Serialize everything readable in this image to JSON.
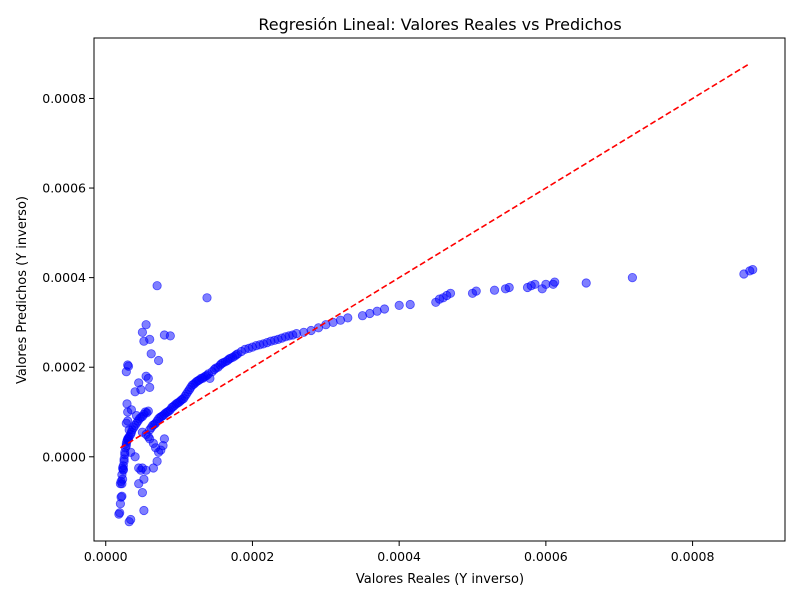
{
  "chart_data": {
    "type": "scatter",
    "title": "Regresión Lineal: Valores Reales vs Predichos",
    "xlabel": "Valores Reales (Y inverso)",
    "ylabel": "Valores Predichos (Y inverso)",
    "xlim": [
      -1.6e-05,
      0.000926
    ],
    "ylim": [
      -0.000188,
      0.000935
    ],
    "xticks": [
      0.0,
      0.0002,
      0.0004,
      0.0006,
      0.0008
    ],
    "xtick_labels": [
      "0.0000",
      "0.0002",
      "0.0004",
      "0.0006",
      "0.0008"
    ],
    "yticks": [
      0.0,
      0.0002,
      0.0004,
      0.0006,
      0.0008
    ],
    "ytick_labels": [
      "0.0000",
      "0.0002",
      "0.0004",
      "0.0006",
      "0.0008"
    ],
    "grid": false,
    "point_color": "#0000ff",
    "point_alpha": 0.5,
    "reference_line": {
      "style": "dashed",
      "color": "#ff0000",
      "x": [
        2e-05,
        0.000878
      ],
      "y": [
        2e-05,
        0.000878
      ]
    },
    "points": {
      "x": [
        1.8e-05,
        1.9e-05,
        2e-05,
        2.1e-05,
        2.2e-05,
        2.2e-05,
        2.3e-05,
        2.4e-05,
        2.4e-05,
        2.5e-05,
        2e-05,
        2.1e-05,
        2.2e-05,
        2.3e-05,
        2.4e-05,
        2.5e-05,
        2.6e-05,
        2.6e-05,
        2.7e-05,
        2.8e-05,
        2.8e-05,
        2.9e-05,
        3e-05,
        3e-05,
        3.1e-05,
        3.2e-05,
        3.4e-05,
        3.5e-05,
        3.6e-05,
        3.8e-05,
        4e-05,
        4.2e-05,
        4.4e-05,
        4.6e-05,
        4.8e-05,
        5e-05,
        5.2e-05,
        5.4e-05,
        5.6e-05,
        5.8e-05,
        6e-05,
        6.2e-05,
        6.4e-05,
        6.6e-05,
        6.8e-05,
        7e-05,
        7.2e-05,
        7.4e-05,
        7.6e-05,
        7.8e-05,
        8e-05,
        8.2e-05,
        8.4e-05,
        8.6e-05,
        8.8e-05,
        9e-05,
        9.2e-05,
        9.4e-05,
        9.6e-05,
        9.8e-05,
        0.0001,
        0.000102,
        0.000104,
        0.000106,
        0.000108,
        0.00011,
        0.000112,
        0.000114,
        0.000116,
        0.000118,
        0.00012,
        0.000122,
        0.000124,
        0.000126,
        0.000128,
        0.00013,
        0.000132,
        0.000134,
        0.000136,
        0.000138,
        0.00014,
        0.000142,
        0.000145,
        0.000148,
        0.00015,
        0.000153,
        0.000156,
        0.000158,
        0.00016,
        0.000163,
        0.000166,
        0.000168,
        0.00017,
        0.000173,
        0.000176,
        0.000178,
        0.00018,
        0.000185,
        0.00019,
        0.000195,
        0.0002,
        0.000205,
        0.00021,
        0.000215,
        0.00022,
        0.000225,
        0.00023,
        0.000235,
        0.00024,
        0.000245,
        0.00025,
        0.000255,
        0.00026,
        0.00027,
        0.00028,
        0.00029,
        0.0003,
        0.00031,
        0.00032,
        0.00033,
        0.00035,
        0.00036,
        0.00037,
        0.00038,
        0.0004,
        0.000415,
        0.00045,
        0.000455,
        0.00046,
        0.000465,
        0.00047,
        0.0005,
        0.000505,
        0.00053,
        0.000545,
        0.00055,
        0.000575,
        0.00058,
        0.000585,
        0.000595,
        0.0006,
        0.00061,
        0.000612,
        0.000655,
        0.000718,
        0.00087,
        0.000878,
        0.000882,
        7e-05,
        0.000138,
        8e-05,
        8.8e-05,
        5.5e-05,
        5e-05,
        5.2e-05,
        6e-05,
        6.2e-05,
        3e-05,
        3.1e-05,
        2.8e-05,
        7.2e-05,
        4.5e-05,
        5.5e-05,
        5.8e-05,
        6e-05,
        4e-05,
        4.8e-05,
        3.5e-05,
        3e-05,
        2.9e-05,
        4.2e-05,
        5e-05,
        5.5e-05,
        5.8e-05,
        6e-05,
        6.5e-05,
        6.8e-05,
        7.5e-05,
        2.8e-05,
        3e-05,
        3.2e-05,
        3.4e-05,
        5e-05,
        5.5e-05,
        4.5e-05,
        4.8e-05,
        5.2e-05,
        6.5e-05,
        7e-05,
        7.2e-05,
        7.8e-05,
        8e-05,
        4.5e-05,
        5e-05,
        5.2e-05,
        3.2e-05,
        3.4e-05,
        4e-05
      ],
      "y": [
        -0.000128,
        -0.000125,
        -0.000105,
        -9e-05,
        -8.8e-05,
        -6e-05,
        -5e-05,
        -3e-05,
        -2.8e-05,
        -1e-05,
        -6e-05,
        -5.5e-05,
        -4e-05,
        -2.5e-05,
        -2e-05,
        -5e-06,
        5e-06,
        1e-05,
        2e-05,
        2.5e-05,
        3e-05,
        3.5e-05,
        3.8e-05,
        4e-05,
        4.2e-05,
        4.5e-05,
        5e-05,
        5.5e-05,
        6e-05,
        6.5e-05,
        7e-05,
        7.5e-05,
        8e-05,
        8.5e-05,
        8.8e-05,
        9e-05,
        9.5e-05,
        0.0001,
        9.8e-05,
        0.000102,
        6e-05,
        6.5e-05,
        7e-05,
        7.2e-05,
        7.5e-05,
        8e-05,
        8.5e-05,
        8.8e-05,
        9e-05,
        9.2e-05,
        9.5e-05,
        9.8e-05,
        0.0001,
        0.000102,
        0.000105,
        0.00011,
        0.000112,
        0.000115,
        0.000118,
        0.00012,
        0.000122,
        0.000125,
        0.000128,
        0.00013,
        0.000135,
        0.00014,
        0.000145,
        0.00015,
        0.000155,
        0.00016,
        0.000162,
        0.000165,
        0.000168,
        0.00017,
        0.000172,
        0.000175,
        0.000175,
        0.000178,
        0.00018,
        0.000182,
        0.000185,
        0.000175,
        0.00019,
        0.000195,
        0.000198,
        0.0002,
        0.000205,
        0.000208,
        0.00021,
        0.000212,
        0.000215,
        0.000218,
        0.00022,
        0.000222,
        0.000225,
        0.000228,
        0.00023,
        0.000235,
        0.00024,
        0.000242,
        0.000245,
        0.000248,
        0.00025,
        0.000252,
        0.000255,
        0.000258,
        0.00026,
        0.000262,
        0.000265,
        0.000268,
        0.00027,
        0.000272,
        0.000275,
        0.000278,
        0.000282,
        0.000288,
        0.000295,
        0.0003,
        0.000305,
        0.00031,
        0.000315,
        0.00032,
        0.000325,
        0.00033,
        0.000338,
        0.00034,
        0.000345,
        0.000352,
        0.000355,
        0.00036,
        0.000365,
        0.000365,
        0.00037,
        0.000372,
        0.000375,
        0.000378,
        0.000378,
        0.000382,
        0.000385,
        0.000375,
        0.000385,
        0.000385,
        0.00039,
        0.000388,
        0.0004,
        0.000408,
        0.000415,
        0.000418,
        0.000382,
        0.000355,
        0.000272,
        0.00027,
        0.000295,
        0.000278,
        0.000258,
        0.000262,
        0.00023,
        0.000205,
        0.000202,
        0.00019,
        0.000215,
        0.000165,
        0.00018,
        0.000175,
        0.000155,
        0.000145,
        0.00015,
        0.000105,
        0.0001,
        0.000118,
        9.2e-05,
        5.5e-05,
        5e-05,
        4.5e-05,
        4e-05,
        3e-05,
        2e-05,
        1.5e-05,
        7.5e-05,
        8e-05,
        6e-05,
        1e-05,
        -2.5e-05,
        -3e-05,
        -2.5e-05,
        -3e-05,
        -5e-05,
        -2.5e-05,
        -1e-05,
        1e-05,
        2.5e-05,
        4e-05,
        -6e-05,
        -8e-05,
        -0.00012,
        -0.000145,
        -0.00014,
        0.0
      ]
    }
  }
}
